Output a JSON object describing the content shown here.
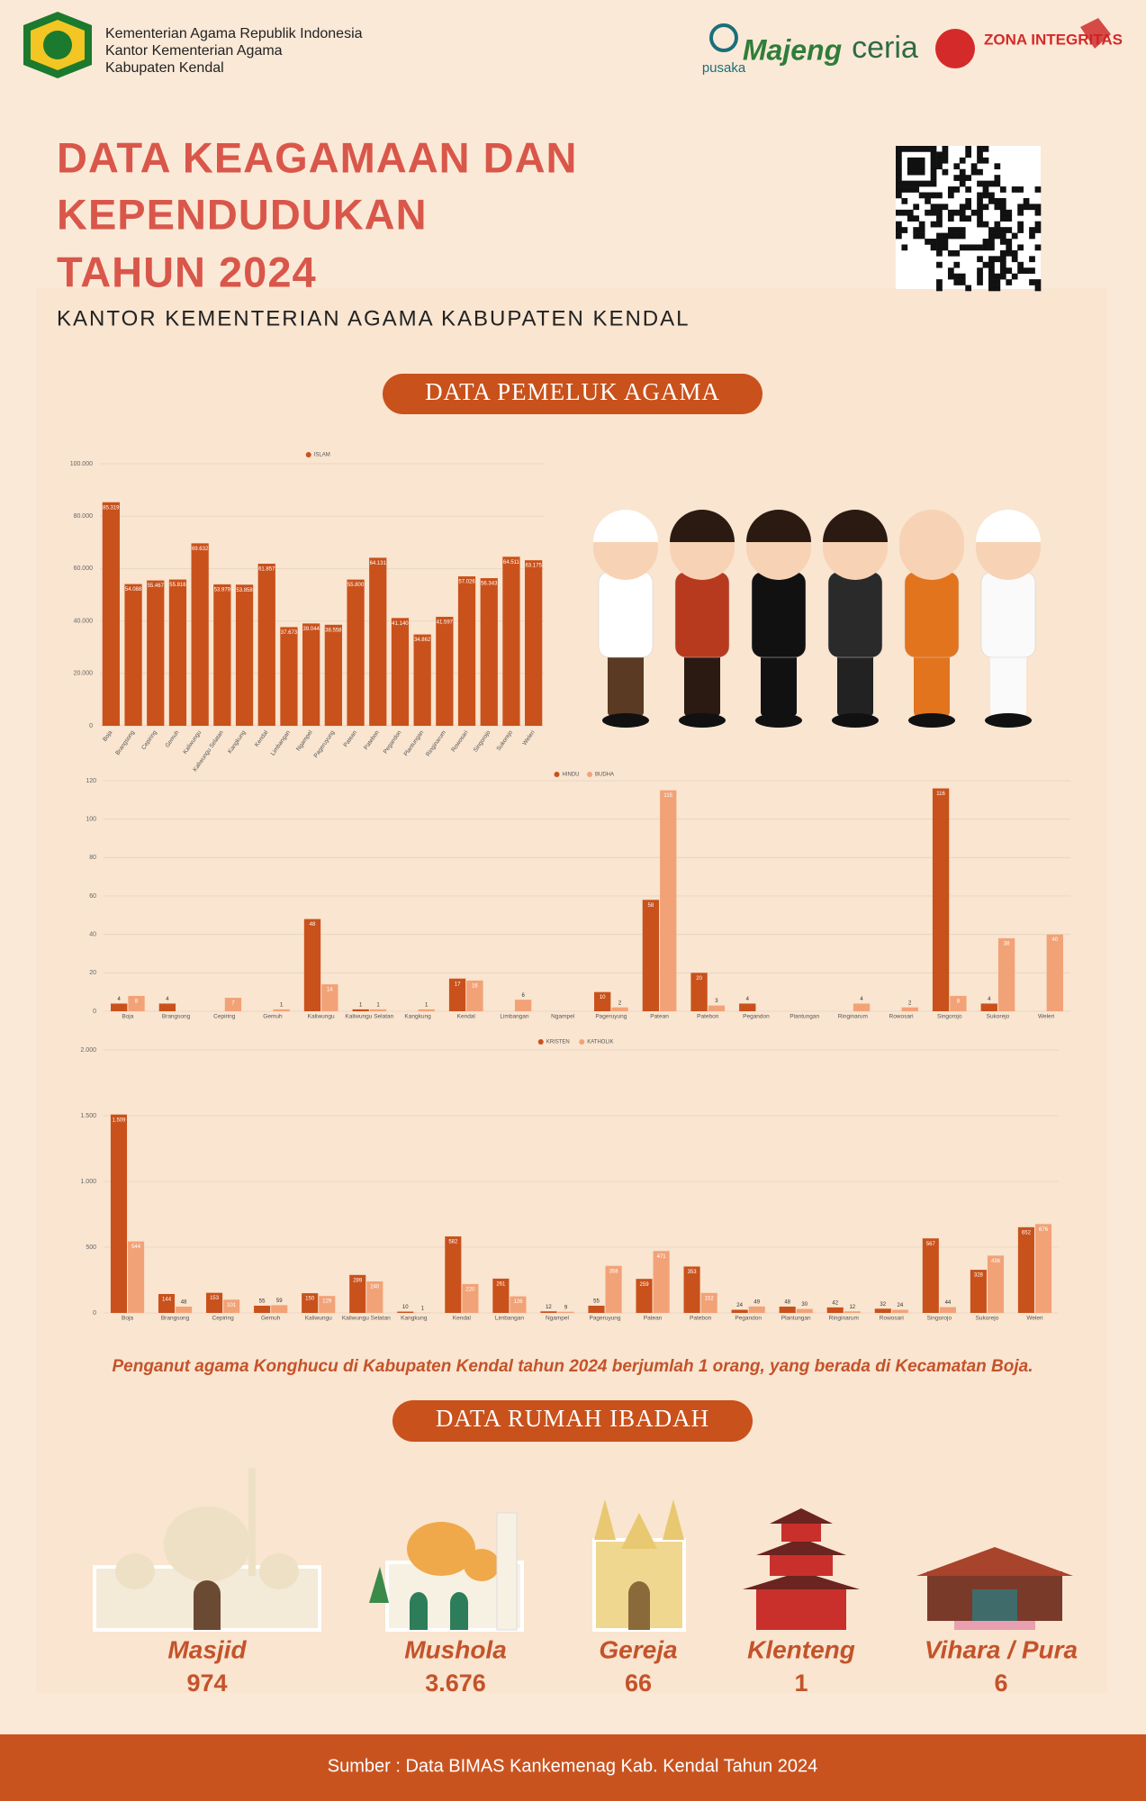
{
  "header": {
    "agency": [
      "Kementerian Agama Republik Indonesia",
      "Kantor Kementerian Agama",
      "Kabupaten Kendal"
    ],
    "logos": [
      "pusaka",
      "Majeng",
      "ceria",
      "ZONA INTEGRITAS"
    ]
  },
  "title": [
    "DATA KEAGAMAAN DAN",
    "KEPENDUDUKAN",
    "TAHUN 2024"
  ],
  "subtitle": "KANTOR KEMENTERIAN AGAMA KABUPATEN KENDAL",
  "section_1": "DATA PEMELUK AGAMA",
  "chart_data": [
    {
      "type": "bar",
      "categories": [
        "Boja",
        "Brangsong",
        "Cepiring",
        "Gemuh",
        "Kaliwungu",
        "Kaliwungu Selatan",
        "Kangkung",
        "Kendal",
        "Limbangan",
        "Ngampel",
        "Pageruyung",
        "Patean",
        "Patebon",
        "Pegandon",
        "Plantungan",
        "Ringinarum",
        "Rowosari",
        "Singorojo",
        "Sukorejo",
        "Weleri"
      ],
      "series": [
        {
          "name": "ISLAM",
          "color": "#c9511b",
          "values": [
            85319,
            54088,
            55467,
            55816,
            69632,
            53979,
            53858,
            61857,
            37673,
            39044,
            38558,
            55800,
            64131,
            41140,
            34862,
            41597,
            57026,
            56343,
            64511,
            63175
          ],
          "value_labels": [
            "85.319",
            "54.088",
            "55.467",
            "55.816",
            "69.632",
            "53.979",
            "53.858",
            "61.857",
            "37.673",
            "39.044",
            "38.558",
            "55.800",
            "64.131",
            "41.140",
            "34.862",
            "41.597",
            "57.026",
            "56.343",
            "64.511",
            "63.175"
          ]
        }
      ],
      "ylim": [
        0,
        100000
      ],
      "yticks": [
        0,
        {
          "value": 20000,
          "label": "20.000"
        },
        {
          "value": 40000,
          "label": "40.000"
        },
        {
          "value": 60000,
          "label": "60.000"
        },
        {
          "value": 80000,
          "label": "80.000"
        },
        {
          "value": 100000,
          "label": "100.000"
        }
      ],
      "grid": true
    },
    {
      "type": "bar",
      "categories": [
        "Boja",
        "Brangsong",
        "Cepiring",
        "Gemuh",
        "Kaliwungu",
        "Kaliwungu Selatan",
        "Kangkung",
        "Kendal",
        "Limbangan",
        "Ngampel",
        "Pageruyung",
        "Patean",
        "Patebon",
        "Pegandon",
        "Plantungan",
        "Ringinarum",
        "Rowosari",
        "Singorojo",
        "Sukorejo",
        "Weleri"
      ],
      "series": [
        {
          "name": "HINDU",
          "color": "#c9511b",
          "values": [
            4,
            4,
            null,
            null,
            48,
            1,
            null,
            17,
            null,
            null,
            10,
            58,
            20,
            4,
            null,
            null,
            null,
            116,
            4,
            null
          ]
        },
        {
          "name": "BUDHA",
          "color": "#f2a277",
          "values": [
            8,
            null,
            7,
            1,
            14,
            1,
            1,
            16,
            6,
            null,
            2,
            115,
            3,
            null,
            null,
            4,
            2,
            8,
            38,
            40
          ]
        }
      ],
      "ylim": [
        0,
        120
      ],
      "yticks": [
        0,
        20,
        40,
        60,
        80,
        100,
        120
      ],
      "grid": true
    },
    {
      "type": "bar",
      "categories": [
        "Boja",
        "Brangsong",
        "Cepiring",
        "Gemuh",
        "Kaliwungu",
        "Kaliwungu Selatan",
        "Kangkung",
        "Kendal",
        "Limbangan",
        "Ngampel",
        "Pageruyung",
        "Patean",
        "Patebon",
        "Pegandon",
        "Plantungan",
        "Ringinarum",
        "Rowosari",
        "Singorojo",
        "Sukorejo",
        "Weleri"
      ],
      "series": [
        {
          "name": "KRISTEN",
          "color": "#c9511b",
          "values": [
            1509,
            144,
            153,
            55,
            150,
            289,
            10,
            582,
            261,
            12,
            55,
            259,
            353,
            24,
            48,
            42,
            32,
            567,
            328,
            652
          ],
          "value_labels": [
            "1.509",
            "144",
            "153",
            "55",
            "150",
            "289",
            "10",
            "582",
            "261",
            "12",
            "55",
            "259",
            "353",
            "24",
            "48",
            "42",
            "32",
            "567",
            "328",
            "652"
          ]
        },
        {
          "name": "KATHOLIK",
          "color": "#f2a277",
          "values": [
            544,
            48,
            101,
            59,
            129,
            240,
            1,
            220,
            126,
            9,
            358,
            471,
            152,
            49,
            30,
            12,
            24,
            44,
            436,
            676
          ]
        }
      ],
      "ylim": [
        0,
        2000
      ],
      "yticks": [
        0,
        500,
        {
          "value": 1000,
          "label": "1.000"
        },
        {
          "value": 1500,
          "label": "1.500"
        },
        {
          "value": 2000,
          "label": "2.000"
        }
      ],
      "grid": true
    }
  ],
  "note": "Penganut agama Konghucu di Kabupaten Kendal tahun 2024 berjumlah 1 orang, yang berada di Kecamatan Boja.",
  "section_2": "DATA RUMAH IBADAH",
  "places": [
    {
      "name": "Masjid",
      "value": "974"
    },
    {
      "name": "Mushola",
      "value": "3.676"
    },
    {
      "name": "Gereja",
      "value": "66"
    },
    {
      "name": "Klenteng",
      "value": "1"
    },
    {
      "name": "Vihara / Pura",
      "value": "6"
    }
  ],
  "source": "Sumber : Data BIMAS Kankemenag Kab. Kendal Tahun 2024"
}
